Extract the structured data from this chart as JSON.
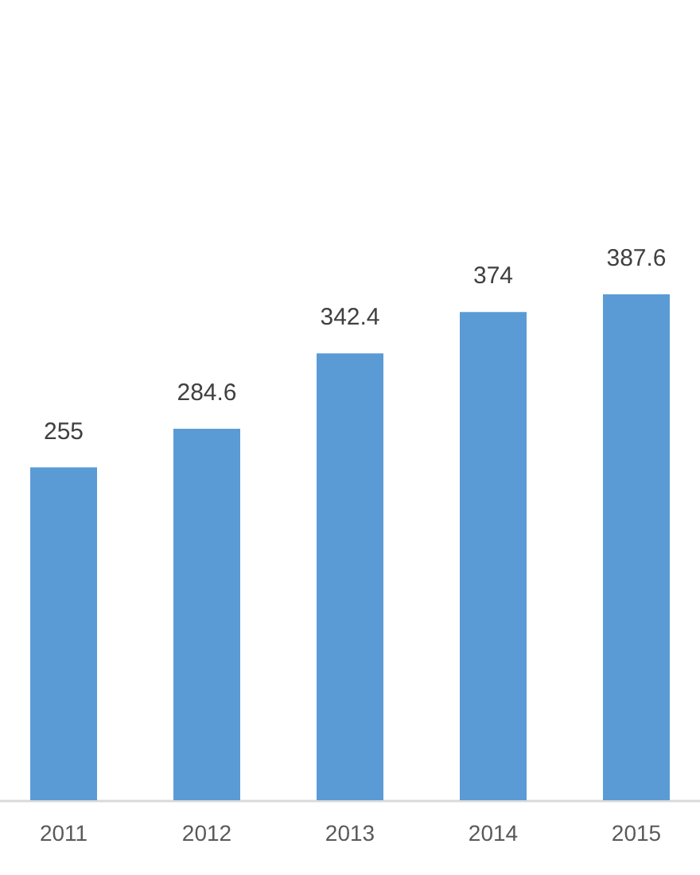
{
  "chart_data": {
    "type": "bar",
    "categories": [
      "2011",
      "2012",
      "2013",
      "2014",
      "2015"
    ],
    "values": [
      255,
      284.6,
      342.4,
      374,
      387.6
    ],
    "color": "#5b9bd5",
    "data_labels": true
  }
}
